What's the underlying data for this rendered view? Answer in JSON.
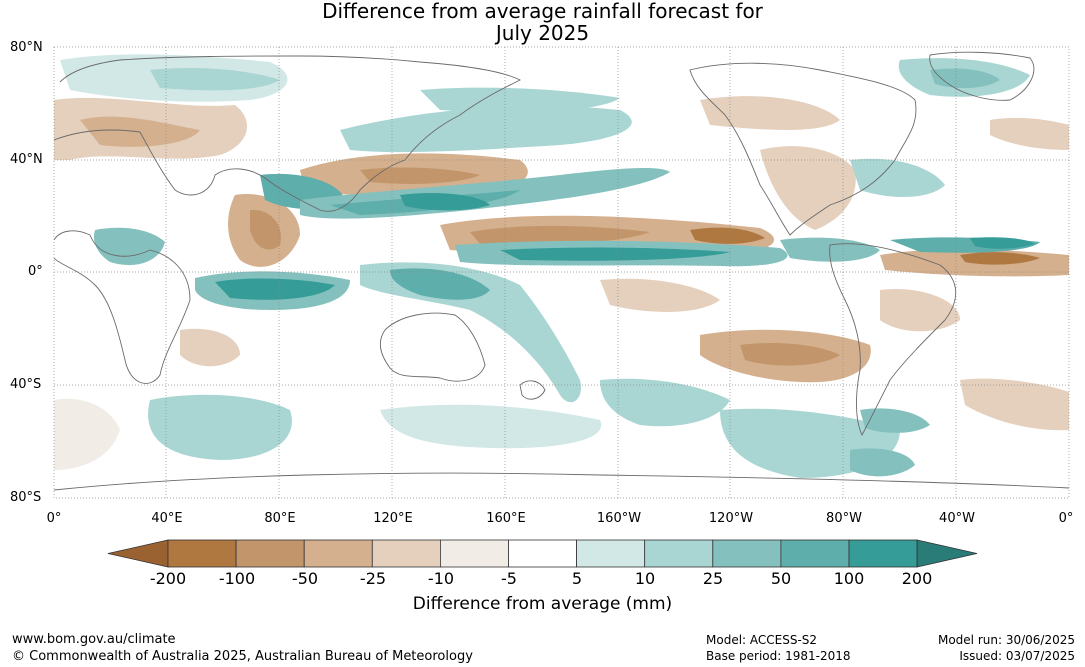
{
  "title": {
    "line1": "Difference from average rainfall forecast for",
    "line2": "July 2025"
  },
  "map": {
    "lat_labels": [
      "80°N",
      "40°N",
      "0°",
      "40°S",
      "80°S"
    ],
    "lon_labels": [
      "0°",
      "40°E",
      "80°E",
      "120°E",
      "160°E",
      "160°W",
      "120°W",
      "80°W",
      "40°W",
      "0°"
    ],
    "projection": "equirectangular",
    "lat_range": [
      -80,
      80
    ],
    "lon_range": [
      0,
      360
    ],
    "gridlines": "dotted"
  },
  "colorbar": {
    "title": "Difference from average (mm)",
    "ticks": [
      "-200",
      "-100",
      "-50",
      "-25",
      "-10",
      "-5",
      "5",
      "10",
      "25",
      "50",
      "100",
      "200"
    ],
    "colors": [
      "#9a6230",
      "#b07841",
      "#c2966a",
      "#d4b08e",
      "#e4d0bd",
      "#f2ece6",
      "#ffffff",
      "#d2e8e6",
      "#a9d6d3",
      "#84c1be",
      "#5eaeab",
      "#359c98",
      "#2a7c79"
    ]
  },
  "footer": {
    "url": "www.bom.gov.au/climate",
    "copyright": "© Commonwealth of Australia 2025, Australian Bureau of Meteorology",
    "model": "Model: ACCESS-S2",
    "base_period": "Base period: 1981-2018",
    "model_run": "Model run: 30/06/2025",
    "issued": "Issued: 03/07/2025"
  }
}
